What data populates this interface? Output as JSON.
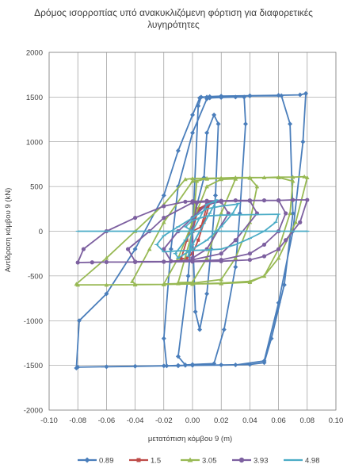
{
  "chart_data": {
    "type": "scatter",
    "title_line1": "Δρόμος ισορροπίας υπό ανακυκλιζόμενη φόρτιση για διαφορετικές",
    "title_line2": "λυγηρότητες",
    "xlabel": "μετατόπιση κόμβου 9 (m)",
    "ylabel": "Αντίδραση κόμβου 9 (kN)",
    "xlim": [
      -0.1,
      0.1
    ],
    "ylim": [
      -2000,
      2000
    ],
    "xticks": [
      "-0.10",
      "-0.08",
      "-0.06",
      "-0.04",
      "-0.02",
      "0.00",
      "0.02",
      "0.04",
      "0.06",
      "0.08",
      "0.10"
    ],
    "yticks": [
      "2000",
      "1500",
      "1000",
      "500",
      "0",
      "-500",
      "-1000",
      "-1500",
      "-2000"
    ],
    "grid": true,
    "legend_position": "bottom",
    "series": [
      {
        "name": "0.89",
        "color": "#4a7ebb",
        "x": [
          0,
          0.004,
          0.006,
          0.02,
          0.04,
          0.06,
          0.075,
          0.079,
          0.077,
          0.07,
          0.06,
          0.05,
          0.03,
          -0.005,
          -0.01,
          -0.02,
          -0.04,
          -0.06,
          -0.08,
          -0.081,
          -0.079,
          -0.06,
          -0.04,
          -0.02,
          -0.01,
          0.0,
          0.005,
          0.01,
          0.012,
          0.02,
          0.04,
          0.062,
          0.068,
          0.07,
          0.064,
          0.055,
          0.05,
          0.04,
          0.02,
          0.0,
          -0.01,
          -0.018,
          -0.02,
          -0.015,
          -0.01,
          0.0,
          0.01,
          0.012,
          0.02,
          0.03,
          0.036,
          0.037,
          0.033,
          0.03,
          0.022,
          0.015,
          0.0,
          -0.005,
          -0.01,
          -0.003,
          0.0,
          0.008,
          0.01,
          0.015,
          0.018,
          0.016,
          0.013,
          0.01,
          0.005,
          0.002,
          0.0
        ],
        "y": [
          0,
          1400,
          1500,
          1510,
          1515,
          1520,
          1525,
          1540,
          1000,
          0,
          -800,
          -1450,
          -1495,
          -1500,
          -1505,
          -1505,
          -1510,
          -1515,
          -1520,
          -1530,
          -1000,
          -700,
          -200,
          400,
          900,
          1300,
          1490,
          1500,
          1505,
          1510,
          1512,
          1515,
          1200,
          200,
          -600,
          -1200,
          -1470,
          -1490,
          -1495,
          -1500,
          -1500,
          -1505,
          -1200,
          -200,
          500,
          1100,
          1480,
          1490,
          1495,
          1500,
          1500,
          1200,
          200,
          -400,
          -1100,
          -1480,
          -1490,
          -1495,
          -1400,
          -500,
          100,
          600,
          1100,
          1300,
          1200,
          400,
          -200,
          -700,
          -1100,
          -900,
          0
        ]
      },
      {
        "name": "1.5",
        "color": "#be4b48",
        "x": [
          0,
          0.004,
          0.01,
          0.012,
          0.008,
          0.004,
          0.0,
          -0.004,
          -0.008,
          -0.004,
          0.0,
          0.005,
          0.01,
          0.006,
          0.0
        ],
        "y": [
          0,
          250,
          300,
          310,
          100,
          -100,
          -250,
          -300,
          -310,
          -100,
          100,
          250,
          280,
          50,
          0
        ]
      },
      {
        "name": "3.05",
        "color": "#98b954",
        "x": [
          0,
          0.003,
          0.01,
          0.02,
          0.03,
          0.04,
          0.05,
          0.06,
          0.07,
          0.078,
          0.08,
          0.072,
          0.06,
          0.05,
          0.04,
          0.02,
          0.0,
          -0.02,
          -0.04,
          -0.06,
          -0.08,
          -0.081,
          -0.06,
          -0.04,
          -0.02,
          -0.005,
          0.0,
          0.01,
          0.02,
          0.04,
          0.06,
          0.07,
          0.068,
          0.06,
          0.05,
          0.04,
          0.02,
          0.0,
          -0.02,
          -0.04,
          -0.042,
          -0.03,
          -0.02,
          0.0,
          0.01,
          0.02,
          0.04,
          0.045,
          0.04,
          0.03,
          0.02,
          0.0,
          -0.01,
          -0.02,
          -0.01,
          0.0,
          0.01,
          0.02,
          0.03,
          0.02,
          0.01,
          0.0,
          -0.01,
          0.0
        ],
        "y": [
          0,
          560,
          590,
          595,
          600,
          600,
          600,
          605,
          605,
          610,
          600,
          100,
          -300,
          -500,
          -570,
          -585,
          -590,
          -595,
          -598,
          -600,
          -600,
          -590,
          -300,
          0,
          300,
          580,
          590,
          592,
          595,
          598,
          600,
          560,
          200,
          -200,
          -500,
          -560,
          -580,
          -590,
          -595,
          -595,
          -560,
          -200,
          100,
          560,
          585,
          590,
          595,
          500,
          100,
          -300,
          -540,
          -580,
          -585,
          -590,
          -300,
          100,
          500,
          580,
          585,
          200,
          -300,
          -570,
          -575,
          0
        ]
      },
      {
        "name": "3.93",
        "color": "#7d60a0",
        "x": [
          0,
          0.003,
          0.01,
          0.02,
          0.03,
          0.04,
          0.05,
          0.06,
          0.07,
          0.08,
          0.075,
          0.065,
          0.06,
          0.05,
          0.04,
          0.02,
          0.0,
          -0.02,
          -0.04,
          -0.06,
          -0.07,
          -0.08,
          -0.076,
          -0.06,
          -0.04,
          -0.02,
          -0.005,
          0.0,
          0.01,
          0.02,
          0.04,
          0.06,
          0.065,
          0.06,
          0.05,
          0.04,
          0.02,
          0.0,
          -0.02,
          -0.04,
          -0.045,
          -0.03,
          -0.02,
          0.0,
          0.02,
          0.04,
          0.045,
          0.03,
          0.02,
          0.0,
          -0.015,
          -0.02,
          -0.01,
          0.0,
          0.01,
          0.02,
          0.025,
          0.01,
          0.0,
          0
        ],
        "y": [
          0,
          320,
          340,
          340,
          345,
          345,
          345,
          345,
          350,
          350,
          100,
          -100,
          -200,
          -280,
          -320,
          -335,
          -340,
          -342,
          -345,
          -345,
          -348,
          -350,
          -200,
          0,
          150,
          280,
          330,
          335,
          338,
          340,
          342,
          345,
          200,
          0,
          -150,
          -250,
          -320,
          -335,
          -340,
          -340,
          -200,
          0,
          150,
          320,
          335,
          340,
          200,
          -100,
          -250,
          -320,
          -335,
          -200,
          0,
          150,
          300,
          330,
          200,
          -200,
          -300,
          0
        ]
      },
      {
        "name": "4.98",
        "color": "#4bacc6",
        "x": [
          -0.08,
          -0.06,
          -0.04,
          -0.02,
          0.0,
          0.02,
          0.04,
          0.06,
          0.08,
          0.08,
          0.06,
          0.04,
          0.02,
          0.0,
          -0.005,
          0.0,
          0.01,
          0.02,
          0.04,
          0.06,
          0.058,
          0.05,
          0.04,
          0.03,
          0.02,
          0.01,
          0.0,
          -0.01,
          -0.02,
          -0.025,
          -0.02,
          -0.01,
          0.0,
          0.01,
          0.02,
          0.03,
          0.032,
          0.028,
          0.02,
          0.01,
          0.0,
          -0.01,
          -0.012,
          -0.005,
          0.0,
          0.005,
          0.01,
          0.015,
          0.017,
          0.012,
          0.005,
          0.0,
          -0.003,
          0.0
        ],
        "y": [
          0,
          0,
          0,
          0,
          0,
          0,
          0,
          0,
          0,
          0,
          0,
          0,
          0,
          0,
          50,
          120,
          170,
          180,
          185,
          190,
          100,
          0,
          -80,
          -150,
          -200,
          -210,
          -215,
          -220,
          -230,
          -150,
          -50,
          50,
          150,
          250,
          280,
          300,
          310,
          200,
          50,
          -100,
          -200,
          -300,
          -250,
          -100,
          0,
          150,
          300,
          330,
          350,
          200,
          0,
          -150,
          -280,
          0
        ]
      }
    ]
  }
}
